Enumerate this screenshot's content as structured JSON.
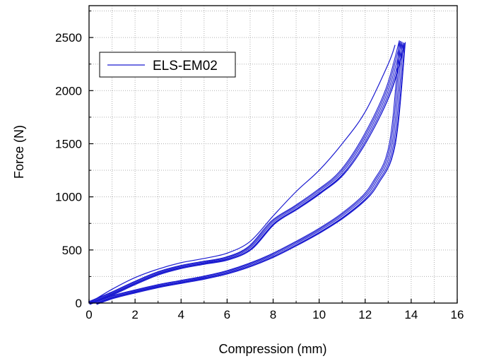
{
  "chart_data": {
    "type": "line",
    "xlabel": "Compression (mm)",
    "ylabel": "Force (N)",
    "xlim": [
      0,
      16
    ],
    "ylim": [
      0,
      2800
    ],
    "xticks": [
      "0",
      "2",
      "4",
      "6",
      "8",
      "10",
      "12",
      "14",
      "16"
    ],
    "yticks": [
      "0",
      "500",
      "1000",
      "1500",
      "2000",
      "2500"
    ],
    "grid": true,
    "legend_position": "top-left",
    "series_color": "#1a1ad0",
    "series": [
      {
        "name": "ELS-EM02",
        "loading": {
          "x": [
            0,
            1,
            2,
            3,
            4,
            5,
            6,
            7,
            8,
            9,
            10,
            11,
            12,
            13,
            13.6
          ],
          "y": [
            0,
            90,
            190,
            280,
            340,
            380,
            420,
            520,
            760,
            900,
            1050,
            1230,
            1550,
            2000,
            2460
          ]
        },
        "unloading": {
          "x": [
            13.6,
            13.3,
            13,
            12.5,
            12,
            11,
            10,
            9,
            8,
            7,
            6,
            5,
            4,
            3,
            2,
            1,
            0.3
          ],
          "y": [
            2460,
            1700,
            1350,
            1150,
            1000,
            820,
            680,
            560,
            450,
            360,
            290,
            240,
            200,
            160,
            110,
            55,
            0
          ]
        },
        "first_cycle_loading": {
          "x": [
            0,
            1,
            2,
            3,
            4,
            5,
            6,
            7,
            8,
            9,
            10,
            11,
            12,
            13,
            13.3
          ],
          "y": [
            0,
            130,
            240,
            320,
            380,
            420,
            470,
            580,
            820,
            1050,
            1250,
            1500,
            1800,
            2250,
            2430
          ]
        }
      }
    ]
  }
}
